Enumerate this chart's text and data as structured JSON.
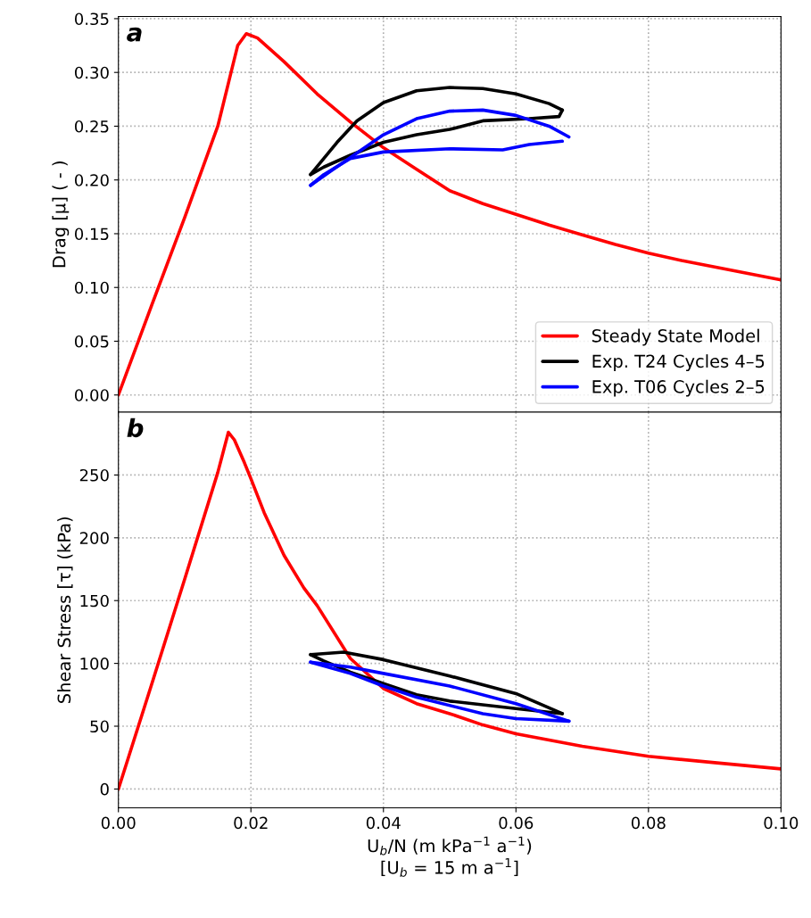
{
  "chart_data": [
    {
      "type": "line",
      "title": "a",
      "ylabel": "Drag [μ] ( - )",
      "xlim": [
        0,
        0.1
      ],
      "xticks": [
        0.0,
        0.02,
        0.04,
        0.06,
        0.08,
        0.1
      ],
      "ylim": [
        -0.016,
        0.352
      ],
      "yticks": [
        {
          "value": 0,
          "label": "0.00"
        },
        0.05,
        {
          "value": 0.1,
          "label": "0.10"
        },
        0.15,
        {
          "value": 0.2,
          "label": "0.20"
        },
        0.25,
        {
          "value": 0.3,
          "label": "0.30"
        },
        0.35
      ],
      "grid": true,
      "legend": "bottom right",
      "tick_labels": "y",
      "line_style": "solid",
      "marker": "none",
      "series": [
        {
          "name": "Steady State Model",
          "color": "#ff0000",
          "x": [
            0,
            0.005,
            0.01,
            0.015,
            0.017,
            0.018,
            0.0193,
            0.021,
            0.025,
            0.03,
            0.035,
            0.04,
            0.045,
            0.05,
            0.055,
            0.06,
            0.065,
            0.07,
            0.075,
            0.08,
            0.085,
            0.09,
            0.095,
            0.1
          ],
          "values": [
            0,
            0.083,
            0.165,
            0.25,
            0.3,
            0.325,
            0.336,
            0.332,
            0.31,
            0.28,
            0.254,
            0.23,
            0.21,
            0.19,
            0.178,
            0.168,
            0.158,
            0.149,
            0.14,
            0.132,
            0.125,
            0.119,
            0.113,
            0.107
          ]
        },
        {
          "name": "Exp. T24 Cycles 4–5",
          "color": "#000000",
          "x": [
            0.029,
            0.033,
            0.036,
            0.04,
            0.045,
            0.05,
            0.055,
            0.06,
            0.065,
            0.067
          ],
          "values": [
            0.205,
            0.235,
            0.255,
            0.272,
            0.283,
            0.286,
            0.285,
            0.28,
            0.271,
            0.265
          ]
        },
        {
          "color": "#000000",
          "x": [
            0.029,
            0.031,
            0.035,
            0.04,
            0.045,
            0.05,
            0.055,
            0.062,
            0.0665,
            0.067
          ],
          "values": [
            0.205,
            0.212,
            0.223,
            0.235,
            0.242,
            0.247,
            0.255,
            0.257,
            0.259,
            0.265
          ]
        },
        {
          "name": "Exp. T06 Cycles 2–5",
          "color": "#0000ff",
          "x": [
            0.029,
            0.032,
            0.036,
            0.04,
            0.045,
            0.05,
            0.055,
            0.06,
            0.065,
            0.068
          ],
          "values": [
            0.195,
            0.208,
            0.225,
            0.242,
            0.257,
            0.264,
            0.265,
            0.26,
            0.25,
            0.24
          ]
        },
        {
          "color": "#0000ff",
          "x": [
            0.029,
            0.031,
            0.035,
            0.04,
            0.05,
            0.058,
            0.062,
            0.067
          ],
          "values": [
            0.195,
            0.205,
            0.22,
            0.226,
            0.229,
            0.228,
            0.233,
            0.236
          ]
        }
      ]
    },
    {
      "type": "line",
      "title": "b",
      "ylabel": "Shear Stress [τ] (kPa)",
      "xlabel": "U$_{b}$/N (m kPa$^{−1}$ a$^{−1}$)\n[U$_{b}$ = 15 m a$^{−1}$]",
      "xlim": [
        0,
        0.1
      ],
      "xticks": [
        {
          "value": 0,
          "label": "0.00"
        },
        0.02,
        0.04,
        0.06,
        0.08,
        {
          "value": 0.1,
          "label": "0.10"
        }
      ],
      "ylim": [
        -15,
        300
      ],
      "yticks": [
        0,
        50,
        100,
        150,
        200,
        250
      ],
      "grid": true,
      "legend": false,
      "line_style": "solid",
      "marker": "none",
      "series": [
        {
          "color": "#ff0000",
          "x": [
            0,
            0.005,
            0.01,
            0.015,
            0.0166,
            0.0175,
            0.019,
            0.02,
            0.022,
            0.025,
            0.028,
            0.03,
            0.035,
            0.04,
            0.045,
            0.05,
            0.055,
            0.06,
            0.07,
            0.08,
            0.09,
            0.1
          ],
          "values": [
            0,
            83,
            167,
            252,
            284,
            278,
            260,
            247,
            220,
            186,
            160,
            146,
            104,
            80,
            68,
            60,
            51,
            44,
            34,
            26,
            21,
            16
          ]
        },
        {
          "color": "#000000",
          "x": [
            0.029,
            0.034,
            0.04,
            0.05,
            0.06,
            0.067
          ],
          "values": [
            107,
            109,
            103,
            90,
            76,
            60
          ]
        },
        {
          "color": "#000000",
          "x": [
            0.029,
            0.031,
            0.035,
            0.04,
            0.045,
            0.05,
            0.06,
            0.067
          ],
          "values": [
            107,
            102,
            93,
            84,
            75,
            70,
            64,
            60
          ]
        },
        {
          "color": "#0000ff",
          "x": [
            0.029,
            0.035,
            0.04,
            0.05,
            0.06,
            0.068
          ],
          "values": [
            101,
            97,
            92,
            82,
            68,
            54
          ]
        },
        {
          "color": "#0000ff",
          "x": [
            0.029,
            0.035,
            0.04,
            0.045,
            0.055,
            0.06,
            0.068
          ],
          "values": [
            101,
            92,
            82,
            73,
            60,
            56,
            54
          ]
        }
      ]
    }
  ]
}
